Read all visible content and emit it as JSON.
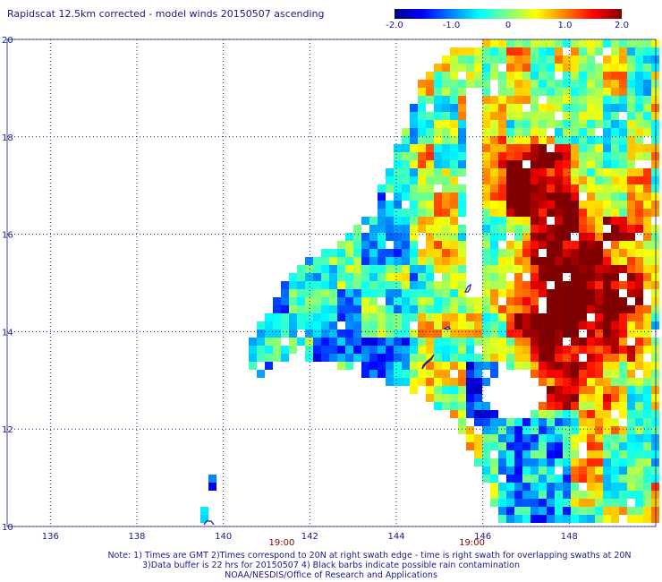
{
  "title": "Rapidscat 12.5km corrected - model winds 20150507 ascending",
  "colorbar": {
    "tick_labels": [
      "-2.0",
      "-1.0",
      "0",
      "1.0",
      "2.0"
    ],
    "tick_values": [
      -2.0,
      -1.0,
      0,
      1.0,
      2.0
    ],
    "range": [
      -2.0,
      2.0
    ],
    "colors": [
      "#000080",
      "#0000ff",
      "#0080ff",
      "#00ffff",
      "#80ff80",
      "#ffff00",
      "#ff8000",
      "#ff0000",
      "#800000"
    ]
  },
  "map": {
    "lon_range": [
      135,
      150
    ],
    "lat_range": [
      10,
      20
    ],
    "lon_ticks": [
      "136",
      "138",
      "140",
      "142",
      "144",
      "146",
      "148"
    ],
    "lon_tick_values": [
      136,
      138,
      140,
      142,
      144,
      146,
      148
    ],
    "lat_ticks": [
      "10",
      "12",
      "14",
      "16",
      "18",
      "20"
    ],
    "lat_tick_values": [
      10,
      12,
      14,
      16,
      18,
      20
    ],
    "gridline_color": "#1a1a8a",
    "time_labels": [
      {
        "text": "19:00",
        "lon": 141.35
      },
      {
        "text": "19:00",
        "lon": 145.75
      }
    ],
    "time_label_color": "#8b0000"
  },
  "notes": [
    "Note: 1) Times are GMT 2)Times correspond to 20N at right swath edge - time is right swath for overlapping swaths at 20N",
    "3)Data buffer is 22 hrs for 20150507 4) Black barbs indicate possible rain contamination",
    "NOAA/NESDIS/Office of Research and Applications"
  ]
}
